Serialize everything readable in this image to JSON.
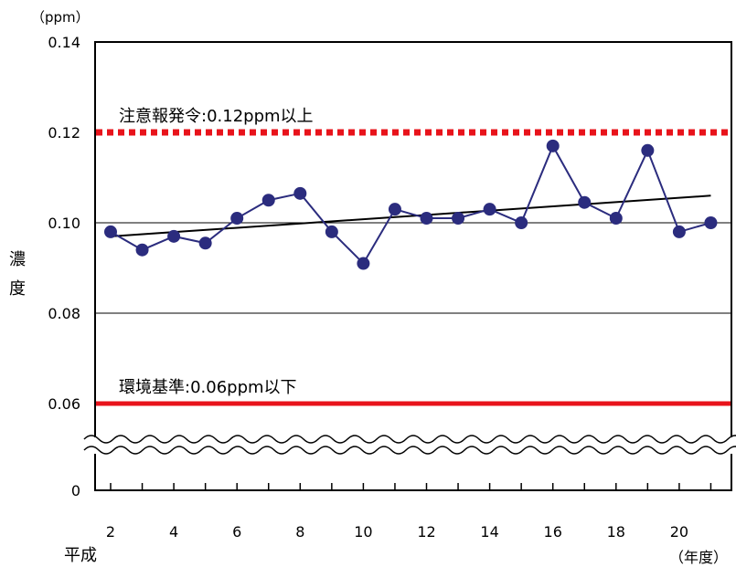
{
  "chart_data": {
    "type": "line",
    "x_era_label": "平成",
    "xlabel": "（年度）",
    "ylabel": "濃度",
    "unit_label": "（ppm）",
    "x": [
      2,
      3,
      4,
      5,
      6,
      7,
      8,
      9,
      10,
      11,
      12,
      13,
      14,
      15,
      16,
      17,
      18,
      19,
      20,
      21
    ],
    "x_tick_labels": [
      "2",
      "4",
      "6",
      "8",
      "10",
      "12",
      "14",
      "16",
      "18",
      "20"
    ],
    "x_tick_values": [
      2,
      4,
      6,
      8,
      10,
      12,
      14,
      16,
      18,
      20
    ],
    "y_tick_labels": [
      "0",
      "0.06",
      "0.08",
      "0.10",
      "0.12",
      "0.14"
    ],
    "y_tick_values": [
      0,
      0.06,
      0.08,
      0.1,
      0.12,
      0.14
    ],
    "axis_break": "wavy break between 0 and 0.06",
    "series": [
      {
        "values": [
          0.098,
          0.094,
          0.097,
          0.0955,
          0.101,
          0.105,
          0.1065,
          0.098,
          0.091,
          0.103,
          0.101,
          0.101,
          0.103,
          0.1,
          0.117,
          0.1045,
          0.101,
          0.116,
          0.098,
          0.1
        ],
        "color": "#2b2c7e"
      }
    ],
    "trend_line": {
      "from": [
        2,
        0.097
      ],
      "to": [
        21,
        0.106
      ],
      "color": "#000000"
    },
    "reference_lines": [
      {
        "value": 0.12,
        "label": "注意報発令:0.12ppm以上",
        "style": "dotted",
        "color": "#e8131b"
      },
      {
        "value": 0.06,
        "label": "環境基準:0.06ppm以下",
        "style": "solid",
        "color": "#e8131b"
      }
    ],
    "grid_lines_y": [
      0.08,
      0.1
    ],
    "grid": true
  }
}
